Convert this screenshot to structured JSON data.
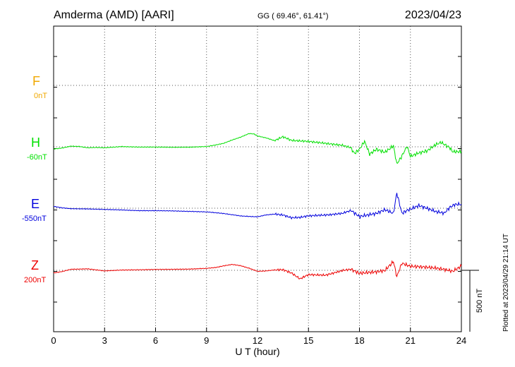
{
  "header": {
    "station": "Amderma (AMD)  [AARI]",
    "coords": "GG ( 69.46°,  61.41°)",
    "date": "2023/04/23"
  },
  "credit": "Plotted at 2023/04/29 21:14 UT",
  "colors": {
    "F": "#f0a800",
    "H": "#00e000",
    "E": "#0000dd",
    "Z": "#ee0000"
  },
  "chart_data": {
    "type": "line",
    "title": "Amderma (AMD)  [AARI]",
    "xlabel": "U T (hour)",
    "xlim": [
      0,
      24
    ],
    "xticks": [
      "0",
      "3",
      "6",
      "9",
      "12",
      "15",
      "18",
      "21",
      "24"
    ],
    "grid": true,
    "scale_bar": "500 nT",
    "series": [
      {
        "name": "F",
        "baseline": "0nT",
        "points": []
      },
      {
        "name": "H",
        "baseline": "-60nT",
        "points": [
          [
            0,
            -18
          ],
          [
            0.5,
            -10
          ],
          [
            1,
            5
          ],
          [
            1.5,
            3
          ],
          [
            2,
            -8
          ],
          [
            2.5,
            -5
          ],
          [
            3,
            -8
          ],
          [
            3.5,
            -3
          ],
          [
            4,
            2
          ],
          [
            5,
            -2
          ],
          [
            6,
            -2
          ],
          [
            7,
            -4
          ],
          [
            8,
            -3
          ],
          [
            9,
            2
          ],
          [
            9.5,
            14
          ],
          [
            10,
            28
          ],
          [
            10.5,
            55
          ],
          [
            11,
            78
          ],
          [
            11.5,
            108
          ],
          [
            11.8,
            104
          ],
          [
            12,
            88
          ],
          [
            12.5,
            73
          ],
          [
            13,
            50
          ],
          [
            13.5,
            82
          ],
          [
            14,
            52
          ],
          [
            14.5,
            48
          ],
          [
            15,
            44
          ],
          [
            16,
            28
          ],
          [
            17,
            12
          ],
          [
            17.5,
            -8
          ],
          [
            17.7,
            -55
          ],
          [
            18,
            -20
          ],
          [
            18.3,
            45
          ],
          [
            18.6,
            -60
          ],
          [
            19,
            -20
          ],
          [
            19.5,
            -45
          ],
          [
            20,
            8
          ],
          [
            20.2,
            -140
          ],
          [
            20.5,
            -75
          ],
          [
            20.8,
            5
          ],
          [
            21,
            -78
          ],
          [
            21.5,
            -50
          ],
          [
            22,
            -32
          ],
          [
            22.5,
            18
          ],
          [
            22.8,
            36
          ],
          [
            23.3,
            -6
          ],
          [
            23.5,
            -40
          ],
          [
            24,
            -40
          ]
        ]
      },
      {
        "name": "E",
        "baseline": "-550nT",
        "points": [
          [
            0,
            15
          ],
          [
            0.5,
            3
          ],
          [
            1,
            -4
          ],
          [
            2,
            -6
          ],
          [
            3,
            -10
          ],
          [
            4,
            -14
          ],
          [
            5,
            -20
          ],
          [
            6,
            -20
          ],
          [
            7,
            -22
          ],
          [
            8,
            -26
          ],
          [
            9,
            -30
          ],
          [
            10,
            -43
          ],
          [
            11,
            -63
          ],
          [
            11.5,
            -67
          ],
          [
            12,
            -70
          ],
          [
            12.5,
            -55
          ],
          [
            13,
            -48
          ],
          [
            13.5,
            -55
          ],
          [
            14,
            -78
          ],
          [
            14.5,
            -75
          ],
          [
            15,
            -62
          ],
          [
            16,
            -56
          ],
          [
            17,
            -42
          ],
          [
            17.5,
            -18
          ],
          [
            18,
            -68
          ],
          [
            18.5,
            -55
          ],
          [
            19,
            -42
          ],
          [
            19.5,
            -12
          ],
          [
            20,
            -42
          ],
          [
            20.2,
            125
          ],
          [
            20.5,
            -42
          ],
          [
            20.8,
            -18
          ],
          [
            21,
            -8
          ],
          [
            21.5,
            22
          ],
          [
            22,
            -2
          ],
          [
            22.5,
            -28
          ],
          [
            23,
            -40
          ],
          [
            23.3,
            5
          ],
          [
            23.6,
            30
          ],
          [
            24,
            32
          ]
        ]
      },
      {
        "name": "Z",
        "baseline": "200nT",
        "points": [
          [
            0,
            -22
          ],
          [
            0.5,
            -10
          ],
          [
            1,
            8
          ],
          [
            2,
            12
          ],
          [
            3,
            -5
          ],
          [
            4,
            2
          ],
          [
            5,
            4
          ],
          [
            6,
            7
          ],
          [
            7,
            8
          ],
          [
            8,
            10
          ],
          [
            9,
            16
          ],
          [
            9.5,
            22
          ],
          [
            10,
            36
          ],
          [
            10.5,
            48
          ],
          [
            11,
            38
          ],
          [
            11.5,
            17
          ],
          [
            12,
            -8
          ],
          [
            12.5,
            -5
          ],
          [
            13,
            3
          ],
          [
            13.5,
            5
          ],
          [
            14,
            -22
          ],
          [
            14.5,
            -70
          ],
          [
            15,
            -35
          ],
          [
            16,
            -40
          ],
          [
            17,
            -2
          ],
          [
            17.5,
            8
          ],
          [
            18,
            -25
          ],
          [
            18.5,
            -18
          ],
          [
            19,
            -12
          ],
          [
            19.5,
            -2
          ],
          [
            20,
            72
          ],
          [
            20.2,
            -52
          ],
          [
            20.5,
            58
          ],
          [
            21,
            32
          ],
          [
            21.5,
            30
          ],
          [
            22,
            25
          ],
          [
            22.5,
            18
          ],
          [
            23,
            8
          ],
          [
            23.5,
            -8
          ],
          [
            24,
            35
          ]
        ]
      }
    ]
  }
}
